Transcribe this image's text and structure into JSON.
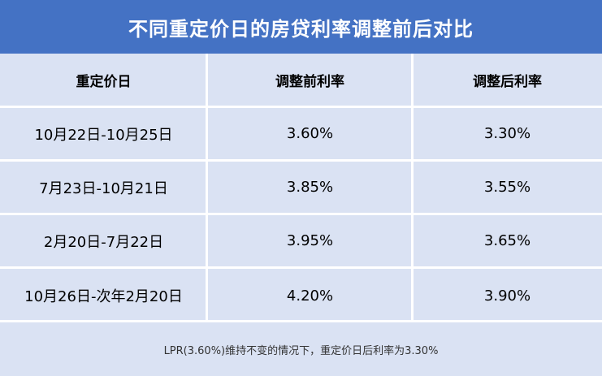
{
  "title": "不同重定价日的房贷利率调整前后对比",
  "columns": [
    "重定价日",
    "调整前利率",
    "调整后利率"
  ],
  "rows": [
    [
      "10月22日-10月25日",
      "3.60%",
      "3.30%"
    ],
    [
      "7月23日-10月21日",
      "3.85%",
      "3.55%"
    ],
    [
      "2月20日-7月22日",
      "3.95%",
      "3.65%"
    ],
    [
      "10月26日-次年2月20日",
      "4.20%",
      "3.90%"
    ]
  ],
  "footnote": "LPR(3.60%)维持不变的情况下，重定价日后利率为3.30%",
  "colors": {
    "title_bg": "#4472c4",
    "table_bg": "#dae2f3",
    "grid_lines": "#ffffff"
  }
}
